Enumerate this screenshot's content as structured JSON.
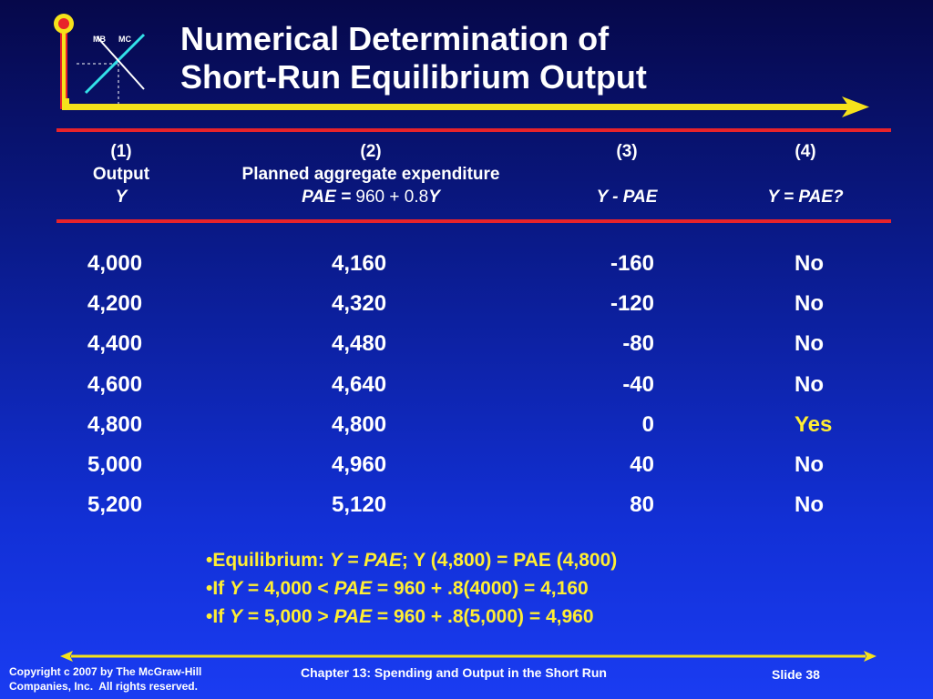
{
  "logo": {
    "left_label": "MB",
    "right_label": "MC",
    "colors": {
      "post": "#e8232a",
      "bar": "#f5e21b",
      "line_mb": "#33e0e8",
      "line_mc": "#ffffff"
    }
  },
  "title": {
    "line1": "Numerical Determination of",
    "line2": "Short-Run Equilibrium Output"
  },
  "table": {
    "headers": [
      {
        "num": "(1)",
        "label": "Output",
        "formula": "Y"
      },
      {
        "num": "(2)",
        "label": "Planned aggregate expenditure",
        "formula_lhs": "PAE =",
        "formula_mid": " 960 + 0.8",
        "formula_var": "Y"
      },
      {
        "num": "(3)",
        "label": "",
        "formula": "Y - PAE"
      },
      {
        "num": "(4)",
        "label": "",
        "formula": "Y = PAE?"
      }
    ],
    "rows": [
      {
        "y": "4,000",
        "pae": "4,160",
        "diff": "-160",
        "eq": "No"
      },
      {
        "y": "4,200",
        "pae": "4,320",
        "diff": "-120",
        "eq": "No"
      },
      {
        "y": "4,400",
        "pae": "4,480",
        "diff": "-80",
        "eq": "No"
      },
      {
        "y": "4,600",
        "pae": "4,640",
        "diff": "-40",
        "eq": "No"
      },
      {
        "y": "4,800",
        "pae": "4,800",
        "diff": "0",
        "eq": "Yes"
      },
      {
        "y": "5,000",
        "pae": "4,960",
        "diff": "40",
        "eq": "No"
      },
      {
        "y": "5,200",
        "pae": "5,120",
        "diff": "80",
        "eq": "No"
      }
    ]
  },
  "bullets": {
    "b1": {
      "prefix": "•Equilibrium: ",
      "italic": "Y = PAE",
      "rest": "; Y (4,800) = PAE (4,800)"
    },
    "b2": {
      "prefix": "•If ",
      "y": "Y",
      "mid": " = 4,000 < ",
      "pae": "PAE",
      "rest": " = 960 + .8(4000) = 4,160"
    },
    "b3": {
      "prefix": "•If ",
      "y": "Y",
      "mid": " = 5,000 > ",
      "pae": "PAE",
      "rest": " = 960 + .8(5,000) = 4,960"
    }
  },
  "footer": {
    "copyright_line1": "Copyright c 2007 by The McGraw-Hill",
    "copyright_line2": "Companies, Inc.  All rights reserved.",
    "chapter": "Chapter 13: Spending and Output in the Short Run",
    "slide": "Slide 38"
  },
  "colors": {
    "accent_yellow": "#ffee33",
    "rule_red": "#e8232a",
    "text": "#ffffff"
  }
}
